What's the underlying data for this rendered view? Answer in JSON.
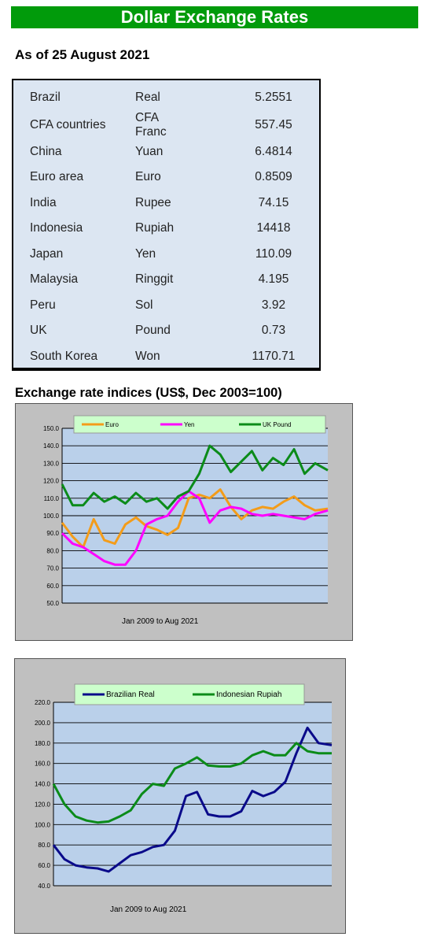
{
  "header": {
    "title": "Dollar Exchange Rates"
  },
  "as_of": "As of 25 August 2021",
  "rates": [
    {
      "country": "Brazil",
      "currency": "Real",
      "rate": "5.2551"
    },
    {
      "country": "CFA countries",
      "currency": "CFA Franc",
      "rate": "557.45"
    },
    {
      "country": "China",
      "currency": "Yuan",
      "rate": "6.4814"
    },
    {
      "country": "Euro area",
      "currency": "Euro",
      "rate": "0.8509"
    },
    {
      "country": "India",
      "currency": "Rupee",
      "rate": "74.15"
    },
    {
      "country": "Indonesia",
      "currency": "Rupiah",
      "rate": "14418"
    },
    {
      "country": "Japan",
      "currency": "Yen",
      "rate": "110.09"
    },
    {
      "country": "Malaysia",
      "currency": "Ringgit",
      "rate": "4.195"
    },
    {
      "country": "Peru",
      "currency": "Sol",
      "rate": "3.92"
    },
    {
      "country": "UK",
      "currency": "Pound",
      "rate": "0.73"
    },
    {
      "country": "South Korea",
      "currency": "Won",
      "rate": "1170.71"
    }
  ],
  "section2_title": "Exchange rate indices (US$, Dec 2003=100)",
  "chart_data": [
    {
      "type": "line",
      "title": "",
      "xlabel": "Jan 2009  to Aug 2021",
      "ylabel": "",
      "ylim": [
        50,
        150
      ],
      "yticks": [
        "50.0",
        "60.0",
        "70.0",
        "80.0",
        "90.0",
        "100.0",
        "110.0",
        "120.0",
        "130.0",
        "140.0",
        "150.0"
      ],
      "grid": true,
      "legend": "top",
      "x": [
        2009.0,
        2009.5,
        2010.0,
        2010.5,
        2011.0,
        2011.5,
        2012.0,
        2012.5,
        2013.0,
        2013.5,
        2014.0,
        2014.5,
        2015.0,
        2015.5,
        2016.0,
        2016.5,
        2017.0,
        2017.5,
        2018.0,
        2018.5,
        2019.0,
        2019.5,
        2020.0,
        2020.5,
        2021.0,
        2021.6
      ],
      "series": [
        {
          "name": "Euro",
          "color": "#f39c1a",
          "values": [
            96,
            88,
            82,
            98,
            86,
            84,
            95,
            99,
            94,
            92,
            89,
            93,
            110,
            112,
            110,
            115,
            105,
            98,
            103,
            105,
            104,
            108,
            111,
            106,
            103,
            104
          ]
        },
        {
          "name": "Yen",
          "color": "#ff00ff",
          "values": [
            90,
            84,
            82,
            78,
            74,
            72,
            72,
            80,
            95,
            98,
            100,
            108,
            114,
            110,
            96,
            103,
            105,
            104,
            101,
            100,
            101,
            100,
            99,
            98,
            101,
            103
          ]
        },
        {
          "name": "UK Pound",
          "color": "#0b8b19",
          "values": [
            118,
            106,
            106,
            113,
            108,
            111,
            107,
            113,
            108,
            110,
            104,
            111,
            114,
            124,
            140,
            135,
            125,
            131,
            137,
            126,
            133,
            129,
            138,
            124,
            130,
            126
          ]
        }
      ]
    },
    {
      "type": "line",
      "title": "",
      "xlabel": "Jan 2009  to Aug 2021",
      "ylabel": "",
      "ylim": [
        40,
        220
      ],
      "yticks": [
        "40.0",
        "60.0",
        "80.0",
        "100.0",
        "120.0",
        "140.0",
        "160.0",
        "180.0",
        "200.0",
        "220.0"
      ],
      "grid": true,
      "legend": "top",
      "x": [
        2009.0,
        2009.5,
        2010.0,
        2010.5,
        2011.0,
        2011.5,
        2012.0,
        2012.5,
        2013.0,
        2013.5,
        2014.0,
        2014.5,
        2015.0,
        2015.5,
        2016.0,
        2016.5,
        2017.0,
        2017.5,
        2018.0,
        2018.5,
        2019.0,
        2019.5,
        2020.0,
        2020.5,
        2021.0,
        2021.6
      ],
      "series": [
        {
          "name": "Brazilian Real",
          "color": "#0a0a8a",
          "values": [
            80,
            66,
            60,
            58,
            57,
            54,
            62,
            70,
            73,
            78,
            80,
            94,
            128,
            132,
            110,
            108,
            108,
            113,
            133,
            128,
            132,
            142,
            170,
            195,
            180,
            178
          ]
        },
        {
          "name": "Indonesian Rupiah",
          "color": "#0b8b19",
          "values": [
            140,
            120,
            108,
            104,
            102,
            103,
            108,
            114,
            130,
            140,
            138,
            155,
            160,
            166,
            158,
            157,
            157,
            160,
            168,
            172,
            168,
            168,
            180,
            172,
            170,
            170
          ]
        }
      ]
    }
  ]
}
